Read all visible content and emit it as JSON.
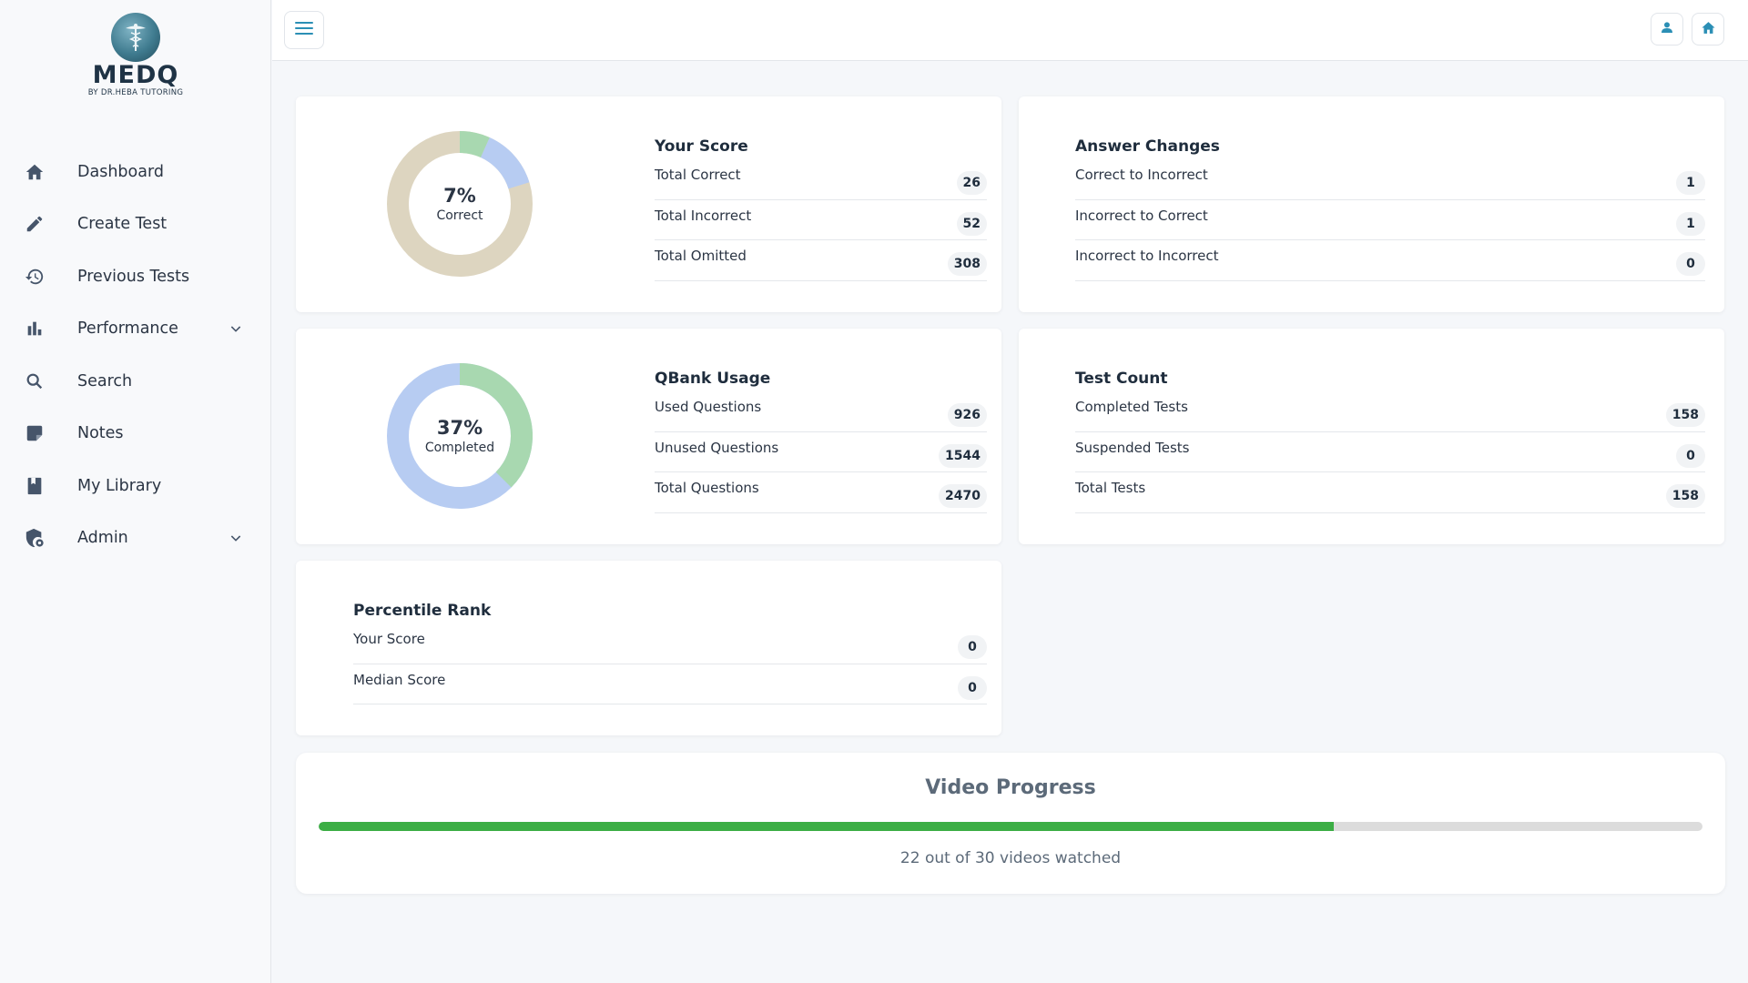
{
  "brand": {
    "name": "MEDQ",
    "tagline": "BY DR.HEBA TUTORING"
  },
  "sidebar": {
    "items": [
      {
        "label": "Dashboard",
        "icon": "home-icon"
      },
      {
        "label": "Create Test",
        "icon": "pencil-icon"
      },
      {
        "label": "Previous Tests",
        "icon": "history-icon"
      },
      {
        "label": "Performance",
        "icon": "bar-chart-icon",
        "expandable": true
      },
      {
        "label": "Search",
        "icon": "search-icon"
      },
      {
        "label": "Notes",
        "icon": "note-icon"
      },
      {
        "label": "My Library",
        "icon": "book-icon"
      },
      {
        "label": "Admin",
        "icon": "admin-shield-icon",
        "expandable": true
      }
    ]
  },
  "topbar": {
    "menu_icon": "hamburger-icon",
    "profile_icon": "user-icon",
    "home_icon": "home-icon"
  },
  "colors": {
    "accent": "#2b8fb5",
    "donut_correct": "#a8d8b0",
    "donut_incorrect": "#b7ccf2",
    "donut_omitted": "#ddd5c0",
    "donut_used": "#a8d8b0",
    "donut_unused": "#b7ccf2",
    "progress_fill": "#3cae45",
    "progress_track": "#dcdcdc"
  },
  "score": {
    "donut_percent": "7%",
    "donut_label": "Correct",
    "title": "Your Score",
    "rows": [
      {
        "label": "Total Correct",
        "value": "26"
      },
      {
        "label": "Total Incorrect",
        "value": "52"
      },
      {
        "label": "Total Omitted",
        "value": "308"
      }
    ]
  },
  "answer_changes": {
    "title": "Answer Changes",
    "rows": [
      {
        "label": "Correct to Incorrect",
        "value": "1"
      },
      {
        "label": "Incorrect to Correct",
        "value": "1"
      },
      {
        "label": "Incorrect to Incorrect",
        "value": "0"
      }
    ]
  },
  "qbank": {
    "donut_percent": "37%",
    "donut_label": "Completed",
    "title": "QBank Usage",
    "rows": [
      {
        "label": "Used Questions",
        "value": "926"
      },
      {
        "label": "Unused Questions",
        "value": "1544"
      },
      {
        "label": "Total Questions",
        "value": "2470"
      }
    ]
  },
  "test_count": {
    "title": "Test Count",
    "rows": [
      {
        "label": "Completed Tests",
        "value": "158"
      },
      {
        "label": "Suspended Tests",
        "value": "0"
      },
      {
        "label": "Total Tests",
        "value": "158"
      }
    ]
  },
  "percentile": {
    "title": "Percentile Rank",
    "rows": [
      {
        "label": "Your Score",
        "value": "0"
      },
      {
        "label": "Median Score",
        "value": "0"
      }
    ]
  },
  "video_progress": {
    "title": "Video Progress",
    "watched": 22,
    "total": 30,
    "fraction": 0.7333,
    "text": "22 out of 30 videos watched"
  }
}
